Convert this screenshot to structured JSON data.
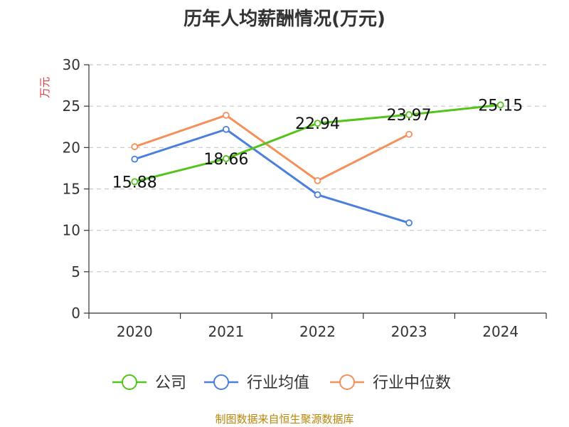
{
  "chart_data": {
    "type": "line",
    "title": "历年人均薪酬情况(万元)",
    "ylabel": "万元",
    "xlabel": "",
    "ylim": [
      0,
      30
    ],
    "yticks": [
      0,
      5,
      10,
      15,
      20,
      25,
      30
    ],
    "categories": [
      "2020",
      "2021",
      "2022",
      "2023",
      "2024"
    ],
    "grid": true,
    "legend_position": "bottom",
    "series": [
      {
        "name": "公司",
        "color": "#52c41a",
        "values": [
          15.88,
          18.66,
          22.94,
          23.97,
          25.15
        ],
        "labels": [
          "15.88",
          "18.66",
          "22.94",
          "23.97",
          "25.15"
        ]
      },
      {
        "name": "行业均值",
        "color": "#4a7fdc",
        "values": [
          18.6,
          22.2,
          14.3,
          10.9,
          null
        ]
      },
      {
        "name": "行业中位数",
        "color": "#f5905a",
        "values": [
          20.1,
          23.9,
          16.0,
          21.6,
          null
        ]
      }
    ]
  },
  "source_text": "制图数据来自恒生聚源数据库"
}
